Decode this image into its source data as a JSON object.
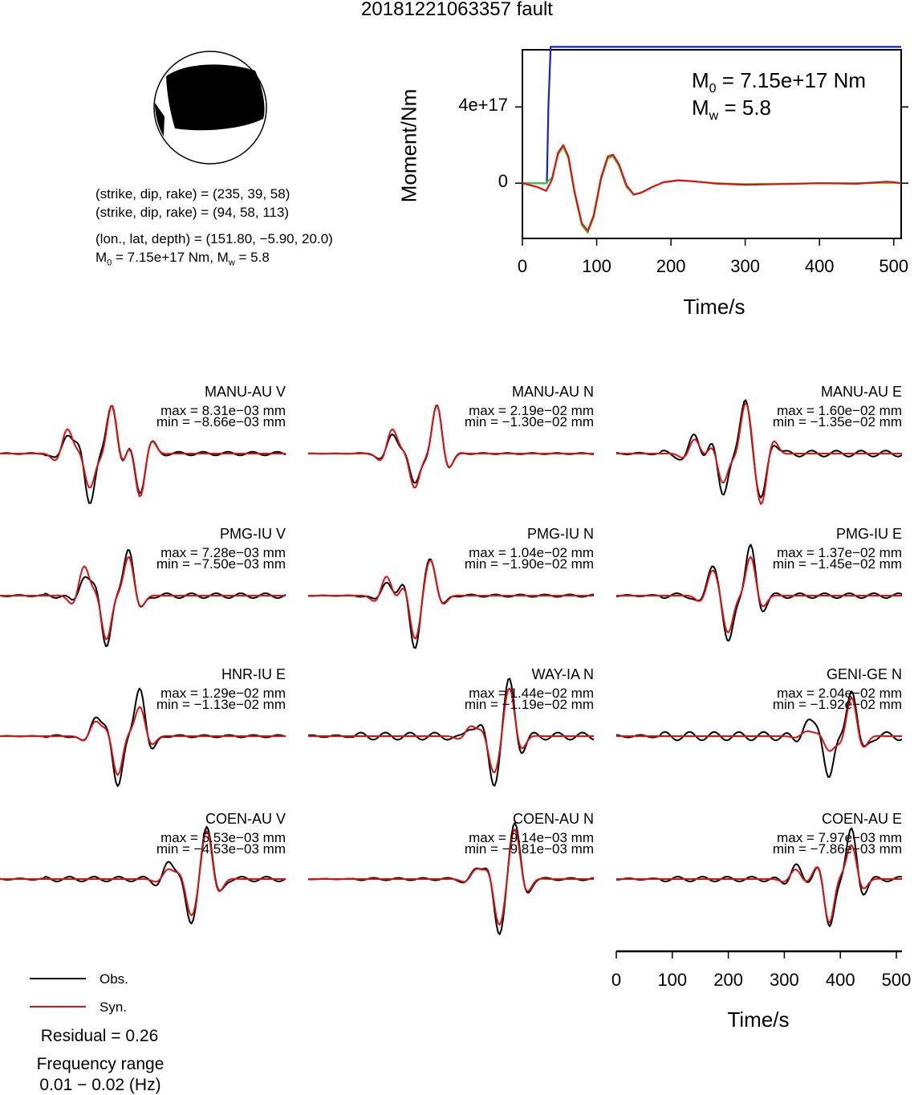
{
  "title": "20181221063357 fault",
  "source_params": {
    "np1": "(strike, dip, rake) = (235, 39, 58)",
    "np2": "(strike, dip, rake) = (94, 58, 113)",
    "location": "(lon., lat, depth) = (151.80, −5.90, 20.0)",
    "moment_line_prefix": "M",
    "moment_line_sub": "0",
    "moment_line_rest": " = 7.15e+17 Nm, M",
    "moment_line_sub2": "w",
    "moment_line_end": " = 5.8"
  },
  "moment_annotation": {
    "m0_prefix": "M",
    "m0_sub": "0",
    "m0_rest": " = 7.15e+17 Nm",
    "mw_prefix": "M",
    "mw_sub": "w",
    "mw_rest": " = 5.8"
  },
  "legend": {
    "obs": "Obs.",
    "syn": "Syn."
  },
  "residual": "Residual = 0.26",
  "freq_label": "Frequency range",
  "freq_value": "0.01 − 0.02 (Hz)",
  "colors": {
    "obs": "#000000",
    "syn": "#dd1111",
    "cumulative": "#1122cc",
    "stf_green": "#44cc33"
  },
  "chart_data": [
    {
      "type": "line",
      "xlabel": "Time/s",
      "ylabel": "Moment/Nm",
      "xlim": [
        0,
        510
      ],
      "ylim": [
        -2.9e+17,
        7e+17
      ],
      "xticks": [
        0,
        100,
        200,
        300,
        400,
        500
      ],
      "yticks": [
        {
          "value": 4e+17,
          "label": "4e+17"
        },
        {
          "value": 0,
          "label": "0"
        }
      ],
      "series": [
        {
          "color": "blue",
          "x": [
            0,
            33,
            35,
            38,
            510
          ],
          "y": [
            0,
            0,
            4e+17,
            7.15e+17,
            7.15e+17
          ]
        },
        {
          "color": "green",
          "x": [
            0,
            32,
            40,
            48,
            55,
            62,
            70,
            80,
            88,
            96,
            106,
            115,
            122,
            130,
            140,
            150,
            160,
            175,
            190,
            210,
            230,
            260,
            300,
            350,
            400,
            450,
            500,
            510
          ],
          "y": [
            0,
            0,
            3e+16,
            1.5e+17,
            1.9e+17,
            1.3e+17,
            -5e+16,
            -2.2e+17,
            -2.6e+17,
            -1.8e+17,
            2e+16,
            1.3e+17,
            1.4e+17,
            9e+16,
            -2e+16,
            -6e+16,
            -5e+16,
            -2e+16,
            5000000000000000.0,
            1.5e+16,
            1e+16,
            0.0,
            -5000000000000000.0,
            -3000000000000000.0,
            0.0,
            0.0,
            2000000000000000.0,
            0.0
          ]
        },
        {
          "color": "red",
          "x": [
            0,
            20,
            32,
            40,
            48,
            55,
            62,
            70,
            80,
            88,
            96,
            106,
            115,
            122,
            130,
            140,
            150,
            160,
            175,
            190,
            210,
            230,
            260,
            300,
            350,
            400,
            450,
            490,
            500,
            510
          ],
          "y": [
            0,
            -2e+16,
            -4e+16,
            2e+16,
            1.6e+17,
            2e+17,
            1.4e+17,
            -4e+16,
            -2.1e+17,
            -2.5e+17,
            -1.7e+17,
            3e+16,
            1.4e+17,
            1.5e+17,
            1e+17,
            -1e+16,
            -6e+16,
            -5e+16,
            -2e+16,
            5000000000000000.0,
            1.5e+16,
            1e+16,
            -2000000000000000.0,
            -8000000000000000.0,
            -5000000000000000.0,
            0.0,
            -3000000000000000.0,
            8000000000000000.0,
            5000000000000000.0,
            0.0
          ]
        }
      ]
    },
    {
      "type": "line",
      "xlabel": "Time/s",
      "xlim": [
        0,
        510
      ],
      "xticks": [
        0,
        100,
        200,
        300,
        400,
        500
      ],
      "series_names": [
        "Obs.",
        "Syn."
      ],
      "panels": [
        {
          "station": "MANU-AU V",
          "max": "max = 8.31e−03 mm",
          "min": "min = −8.66e−03 mm",
          "peak_max": 0.00831,
          "peak_min": -0.00866
        },
        {
          "station": "MANU-AU N",
          "max": "max = 2.19e−02 mm",
          "min": "min = −1.30e−02 mm",
          "peak_max": 0.0219,
          "peak_min": -0.013
        },
        {
          "station": "MANU-AU E",
          "max": "max = 1.60e−02 mm",
          "min": "min = −1.35e−02 mm",
          "peak_max": 0.016,
          "peak_min": -0.0135
        },
        {
          "station": "PMG-IU V",
          "max": "max = 7.28e−03 mm",
          "min": "min = −7.50e−03 mm",
          "peak_max": 0.00728,
          "peak_min": -0.0075
        },
        {
          "station": "PMG-IU N",
          "max": "max = 1.04e−02 mm",
          "min": "min = −1.90e−02 mm",
          "peak_max": 0.0104,
          "peak_min": -0.019
        },
        {
          "station": "PMG-IU E",
          "max": "max = 1.37e−02 mm",
          "min": "min = −1.45e−02 mm",
          "peak_max": 0.0137,
          "peak_min": -0.0145
        },
        {
          "station": "HNR-IU E",
          "max": "max = 1.29e−02 mm",
          "min": "min = −1.13e−02 mm",
          "peak_max": 0.0129,
          "peak_min": -0.0113
        },
        {
          "station": "WAY-IA N",
          "max": "max = 1.44e−02 mm",
          "min": "min = −1.19e−02 mm",
          "peak_max": 0.0144,
          "peak_min": -0.0119
        },
        {
          "station": "GENI-GE N",
          "max": "max = 2.04e−02 mm",
          "min": "min = −1.92e−02 mm",
          "peak_max": 0.0204,
          "peak_min": -0.0192
        },
        {
          "station": "COEN-AU V",
          "max": "max = 5.53e−03 mm",
          "min": "min = −4.53e−03 mm",
          "peak_max": 0.00553,
          "peak_min": -0.00453
        },
        {
          "station": "COEN-AU N",
          "max": "max = 9.14e−03 mm",
          "min": "min = −9.81e−03 mm",
          "peak_max": 0.00914,
          "peak_min": -0.00981
        },
        {
          "station": "COEN-AU E",
          "max": "max = 7.97e−03 mm",
          "min": "min = −7.86e−03 mm",
          "peak_max": 0.00797,
          "peak_min": -0.00786
        }
      ]
    }
  ]
}
